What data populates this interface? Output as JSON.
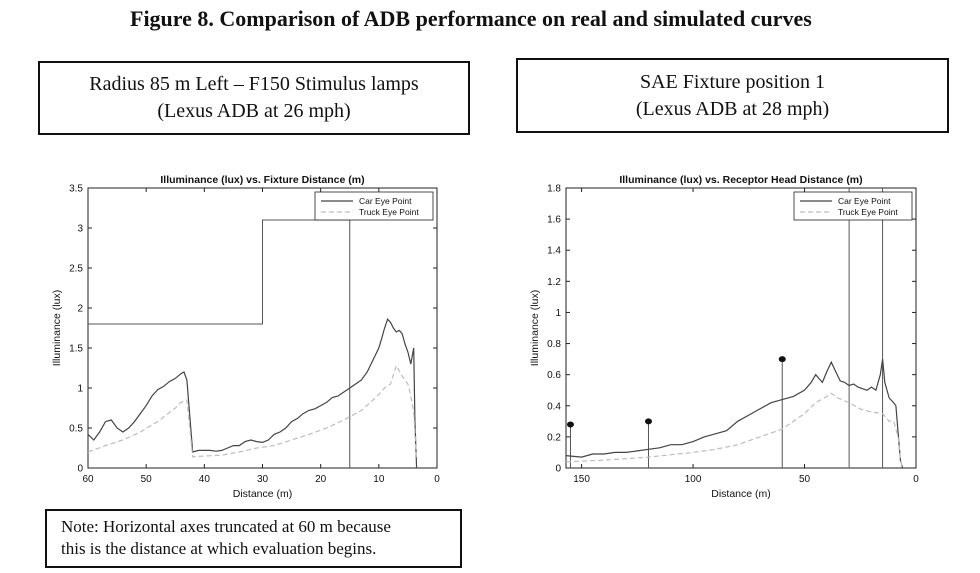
{
  "figure_title": "Figure 8. Comparison of ADB performance on real and simulated curves",
  "left_caption": {
    "line1": "Radius 85 m Left – F150 Stimulus lamps",
    "line2": "(Lexus ADB at 26 mph)"
  },
  "right_caption": {
    "line1": "SAE Fixture position 1",
    "line2": "(Lexus ADB at 28 mph)"
  },
  "note": {
    "line1": "Note: Horizontal axes truncated at 60 m because",
    "line2": "this is the distance at which evaluation begins."
  },
  "colors": {
    "car": "#444444",
    "truck": "#bdbdbd",
    "threshold": "#555555",
    "frame": "#222222"
  },
  "chart_data": [
    {
      "type": "line",
      "title": "Illuminance (lux) vs. Fixture Distance (m)",
      "xlabel": "Distance (m)",
      "ylabel": "Illuminance (lux)",
      "xlim": [
        60,
        0
      ],
      "ylim": [
        0,
        3.5
      ],
      "xticks": [
        60,
        50,
        40,
        30,
        20,
        10,
        0
      ],
      "yticks": [
        0,
        0.5,
        1,
        1.5,
        2,
        2.5,
        3,
        3.5
      ],
      "ytick_labels": [
        "0",
        "0.5",
        "1",
        "1.5",
        "2",
        "2.5",
        "3",
        "3.5"
      ],
      "legend_position": "top-right",
      "threshold_steps": [
        [
          60,
          1.8
        ],
        [
          30,
          1.8
        ],
        [
          30,
          3.1
        ],
        [
          15,
          3.1
        ],
        [
          15,
          0
        ]
      ],
      "series": [
        {
          "name": "Car Eye Point",
          "x": [
            60,
            59,
            58,
            57,
            56,
            55,
            54,
            53,
            52,
            51,
            50,
            49,
            48,
            47,
            46,
            45,
            44,
            43.5,
            43,
            42,
            41,
            40,
            39,
            38,
            37,
            36,
            35,
            34,
            33,
            32,
            31,
            30,
            29,
            28,
            27,
            26,
            25,
            24,
            23,
            22,
            21,
            20,
            19,
            18,
            17,
            16,
            15,
            14,
            13,
            12,
            11,
            10,
            9.5,
            9,
            8.5,
            8,
            7.5,
            7,
            6.5,
            6,
            5.5,
            5,
            4.5,
            4,
            3.8,
            3.5
          ],
          "y": [
            0.42,
            0.35,
            0.45,
            0.58,
            0.6,
            0.5,
            0.45,
            0.5,
            0.58,
            0.68,
            0.78,
            0.9,
            0.98,
            1.02,
            1.08,
            1.12,
            1.18,
            1.2,
            1.1,
            0.2,
            0.22,
            0.22,
            0.22,
            0.21,
            0.22,
            0.25,
            0.28,
            0.28,
            0.33,
            0.35,
            0.33,
            0.32,
            0.35,
            0.42,
            0.45,
            0.5,
            0.58,
            0.62,
            0.68,
            0.72,
            0.74,
            0.78,
            0.82,
            0.88,
            0.9,
            0.95,
            1.0,
            1.05,
            1.1,
            1.2,
            1.35,
            1.5,
            1.62,
            1.75,
            1.86,
            1.82,
            1.75,
            1.7,
            1.72,
            1.68,
            1.55,
            1.45,
            1.3,
            1.5,
            0.6,
            0.0
          ]
        },
        {
          "name": "Truck Eye Point",
          "x": [
            60,
            57,
            54,
            51,
            48,
            45,
            44,
            43,
            42,
            40,
            37,
            34,
            31,
            28,
            25,
            22,
            19,
            16,
            13,
            11,
            10,
            9,
            8,
            7,
            6,
            5,
            4.5,
            4,
            3.5
          ],
          "y": [
            0.2,
            0.28,
            0.35,
            0.45,
            0.58,
            0.75,
            0.82,
            0.85,
            0.14,
            0.15,
            0.16,
            0.2,
            0.25,
            0.28,
            0.35,
            0.42,
            0.5,
            0.6,
            0.72,
            0.85,
            0.92,
            1.0,
            1.05,
            1.28,
            1.15,
            1.05,
            0.9,
            0.7,
            0.1
          ]
        }
      ]
    },
    {
      "type": "line",
      "title": "Illuminance (lux) vs. Receptor Head Distance (m)",
      "xlabel": "Distance (m)",
      "ylabel": "Illuminance (lux)",
      "xlim": [
        157,
        0
      ],
      "ylim": [
        0,
        1.8
      ],
      "xticks": [
        150,
        100,
        50,
        0
      ],
      "yticks": [
        0,
        0.2,
        0.4,
        0.6,
        0.8,
        1,
        1.2,
        1.4,
        1.6,
        1.8
      ],
      "ytick_labels": [
        "0",
        "0.2",
        "0.4",
        "0.6",
        "0.8",
        "1",
        "1.2",
        "1.4",
        "1.6",
        "1.8"
      ],
      "legend_position": "top-right",
      "threshold_lines": [
        {
          "x": 155,
          "top": 0.28
        },
        {
          "x": 120,
          "top": 0.3
        },
        {
          "x": 60,
          "top": 0.7
        },
        {
          "x": 30,
          "top": 1.8
        },
        {
          "x": 15,
          "top": 1.8
        }
      ],
      "series": [
        {
          "name": "Car Eye Point",
          "x": [
            157,
            150,
            145,
            140,
            135,
            130,
            125,
            120,
            115,
            110,
            105,
            100,
            95,
            90,
            85,
            80,
            75,
            70,
            65,
            60,
            55,
            50,
            47,
            45,
            42,
            40,
            38,
            36,
            34,
            32,
            30,
            28,
            26,
            24,
            22,
            20,
            18,
            16,
            15,
            14,
            12,
            10,
            9,
            8,
            7,
            6
          ],
          "y": [
            0.08,
            0.07,
            0.09,
            0.09,
            0.1,
            0.1,
            0.11,
            0.12,
            0.13,
            0.15,
            0.15,
            0.17,
            0.2,
            0.22,
            0.24,
            0.3,
            0.34,
            0.38,
            0.42,
            0.44,
            0.46,
            0.5,
            0.55,
            0.6,
            0.55,
            0.62,
            0.68,
            0.62,
            0.56,
            0.55,
            0.53,
            0.54,
            0.52,
            0.51,
            0.5,
            0.52,
            0.5,
            0.6,
            0.7,
            0.55,
            0.45,
            0.42,
            0.4,
            0.22,
            0.05,
            0.0
          ]
        },
        {
          "name": "Truck Eye Point",
          "x": [
            157,
            140,
            120,
            100,
            90,
            80,
            70,
            60,
            55,
            50,
            45,
            40,
            38,
            35,
            30,
            25,
            20,
            15,
            12,
            10,
            8,
            7,
            6
          ],
          "y": [
            0.04,
            0.05,
            0.07,
            0.1,
            0.12,
            0.15,
            0.2,
            0.25,
            0.3,
            0.35,
            0.42,
            0.46,
            0.48,
            0.45,
            0.42,
            0.38,
            0.36,
            0.35,
            0.3,
            0.3,
            0.2,
            0.05,
            0.0
          ]
        }
      ]
    }
  ]
}
